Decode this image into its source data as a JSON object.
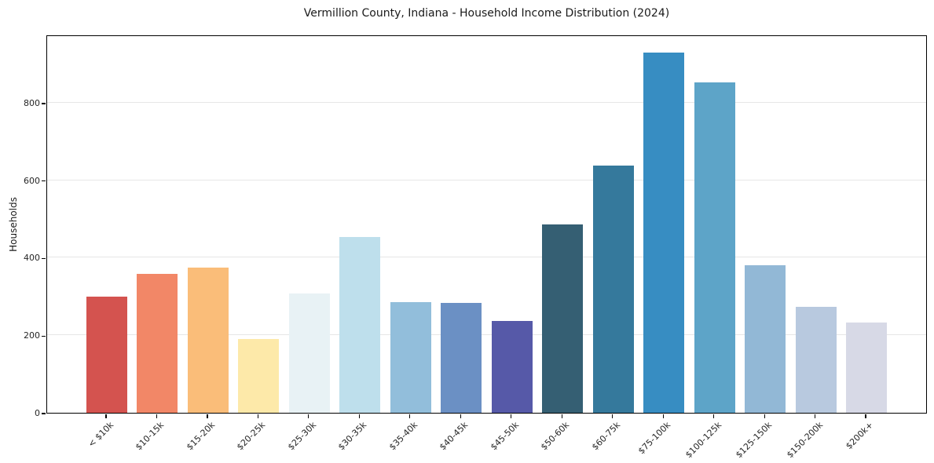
{
  "figure": {
    "title": "Vermillion County, Indiana - Household Income Distribution (2024)"
  },
  "chart_data": {
    "type": "bar",
    "title": "Vermillion County, Indiana - Household Income Distribution (2024)",
    "xlabel": "",
    "ylabel": "Households",
    "categories": [
      "< $10k",
      "$10-15k",
      "$15-20k",
      "$20-25k",
      "$25-30k",
      "$30-35k",
      "$35-40k",
      "$40-45k",
      "$45-50k",
      "$50-60k",
      "$60-75k",
      "$75-100k",
      "$100-125k",
      "$125-150k",
      "$150-200k",
      "$200k+"
    ],
    "values": [
      300,
      359,
      374,
      190,
      308,
      454,
      286,
      283,
      237,
      486,
      638,
      930,
      853,
      381,
      274,
      232
    ],
    "bar_colors": [
      "#d4534f",
      "#f28767",
      "#fabd79",
      "#fde9a9",
      "#e8f2f5",
      "#bedfec",
      "#92bedb",
      "#6b90c4",
      "#5659a8",
      "#355f73",
      "#35799c",
      "#378dc2",
      "#5da4c8",
      "#92b8d6",
      "#b8c9df",
      "#d7d9e6"
    ],
    "ylim": [
      0,
      976
    ],
    "yticks": [
      0,
      200,
      400,
      600,
      800
    ],
    "grid": "horizontal",
    "grid_color": "#e6e6e6",
    "axis_color": "#000000",
    "text_color": "#262626",
    "legend": "none",
    "background": "#ffffff"
  }
}
